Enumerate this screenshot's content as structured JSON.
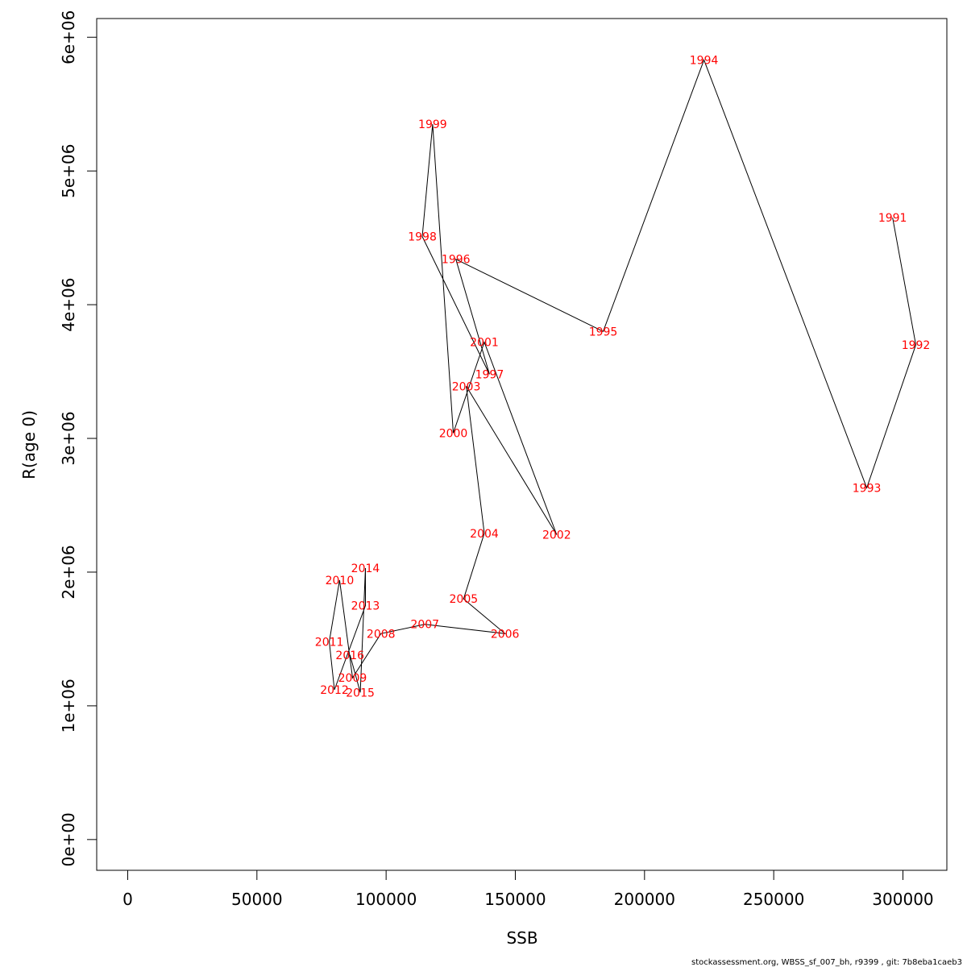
{
  "chart_data": {
    "type": "line",
    "title": "",
    "xlabel": "SSB",
    "ylabel": "R(age 0)",
    "xlim": [
      -12000,
      317000
    ],
    "ylim": [
      -230000,
      6140000
    ],
    "x_ticks": [
      0,
      50000,
      100000,
      150000,
      200000,
      250000,
      300000
    ],
    "x_tick_labels": [
      "0",
      "50000",
      "100000",
      "150000",
      "200000",
      "250000",
      "300000"
    ],
    "y_ticks": [
      0,
      1000000,
      2000000,
      3000000,
      4000000,
      5000000,
      6000000
    ],
    "y_tick_labels": [
      "0e+00",
      "1e+06",
      "2e+06",
      "3e+06",
      "4e+06",
      "5e+06",
      "6e+06"
    ],
    "grid": false,
    "line_color": "#000000",
    "label_color": "#ff0000",
    "points": [
      {
        "year": "1991",
        "ssb": 296000,
        "r": 4650000
      },
      {
        "year": "1992",
        "ssb": 305000,
        "r": 3700000
      },
      {
        "year": "1993",
        "ssb": 286000,
        "r": 2630000
      },
      {
        "year": "1994",
        "ssb": 223000,
        "r": 5830000
      },
      {
        "year": "1995",
        "ssb": 184000,
        "r": 3800000
      },
      {
        "year": "1996",
        "ssb": 127000,
        "r": 4340000
      },
      {
        "year": "1997",
        "ssb": 140000,
        "r": 3480000
      },
      {
        "year": "1998",
        "ssb": 114000,
        "r": 4510000
      },
      {
        "year": "1999",
        "ssb": 118000,
        "r": 5350000
      },
      {
        "year": "2000",
        "ssb": 126000,
        "r": 3040000
      },
      {
        "year": "2001",
        "ssb": 138000,
        "r": 3720000
      },
      {
        "year": "2002",
        "ssb": 166000,
        "r": 2280000
      },
      {
        "year": "2003",
        "ssb": 131000,
        "r": 3390000
      },
      {
        "year": "2004",
        "ssb": 138000,
        "r": 2290000
      },
      {
        "year": "2005",
        "ssb": 130000,
        "r": 1800000
      },
      {
        "year": "2006",
        "ssb": 146000,
        "r": 1540000
      },
      {
        "year": "2007",
        "ssb": 115000,
        "r": 1610000
      },
      {
        "year": "2008",
        "ssb": 98000,
        "r": 1540000
      },
      {
        "year": "2009",
        "ssb": 87000,
        "r": 1210000
      },
      {
        "year": "2010",
        "ssb": 82000,
        "r": 1940000
      },
      {
        "year": "2011",
        "ssb": 78000,
        "r": 1480000
      },
      {
        "year": "2012",
        "ssb": 80000,
        "r": 1120000
      },
      {
        "year": "2013",
        "ssb": 92000,
        "r": 1750000
      },
      {
        "year": "2014",
        "ssb": 92000,
        "r": 2030000
      },
      {
        "year": "2015",
        "ssb": 90000,
        "r": 1100000
      },
      {
        "year": "2016",
        "ssb": 86000,
        "r": 1380000
      }
    ]
  },
  "footer": "stockassessment.org, WBSS_sf_007_bh, r9399 , git: 7b8eba1caeb3"
}
